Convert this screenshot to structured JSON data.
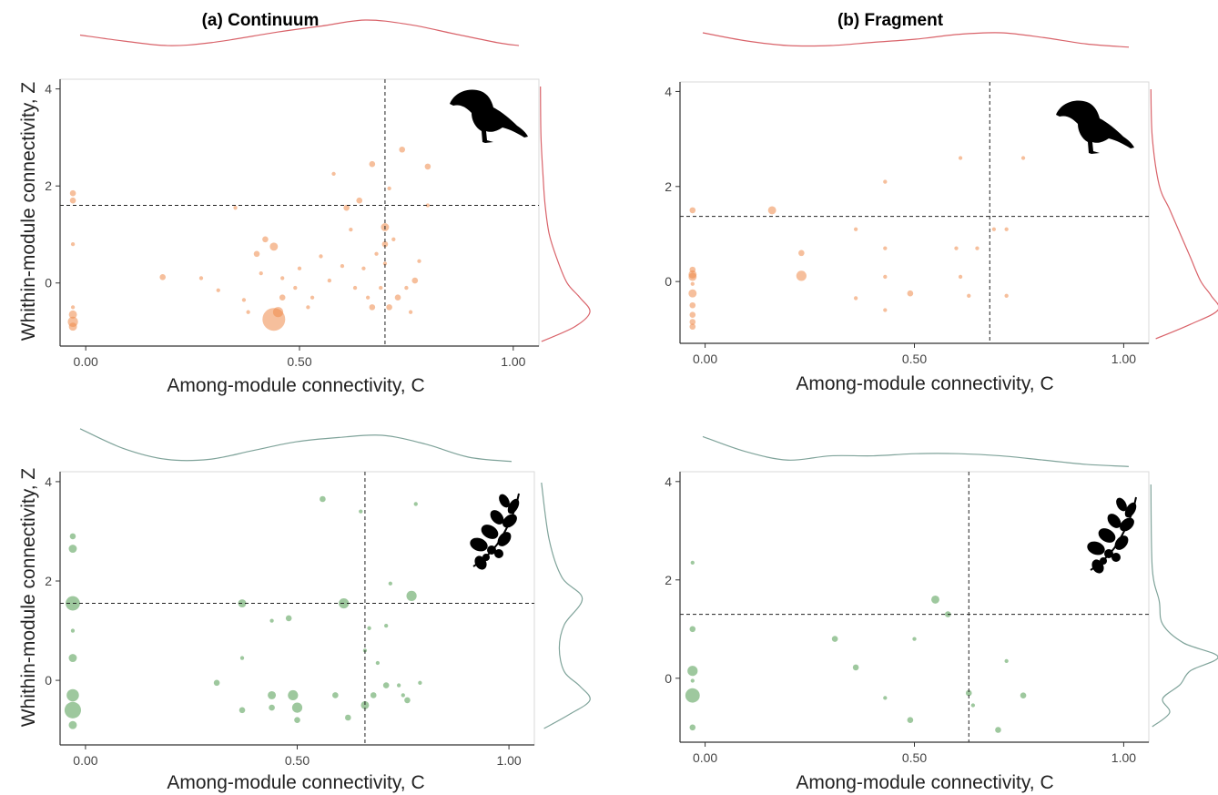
{
  "colors": {
    "birds_points": "#ee8a4a",
    "birds_density": "#d9636a",
    "plants_points": "#4f9a4f",
    "plants_density": "#7fa39a"
  },
  "axes": {
    "xlabel": "Among-module connectivity, C",
    "ylabel": "Whithin-module connectivity, Z",
    "xticks": [
      "0.00",
      "0.50",
      "1.00"
    ],
    "yticks": [
      "0",
      "2",
      "4"
    ]
  },
  "chart_data": [
    {
      "type": "scatter",
      "panel": "birds-continuum",
      "title": "(a)  Continuum",
      "icon": "bird-silhouette-icon",
      "xlim": [
        -0.06,
        1.06
      ],
      "ylim": [
        -1.3,
        4.2
      ],
      "xline": 0.7,
      "yline": 1.6,
      "x_density": [
        [
          0.0,
          0.5
        ],
        [
          0.1,
          0.3
        ],
        [
          0.2,
          0.15
        ],
        [
          0.3,
          0.25
        ],
        [
          0.45,
          0.6
        ],
        [
          0.55,
          0.8
        ],
        [
          0.65,
          1.0
        ],
        [
          0.75,
          0.85
        ],
        [
          0.85,
          0.55
        ],
        [
          0.95,
          0.25
        ],
        [
          1.0,
          0.15
        ]
      ],
      "y_density": [
        [
          -1.2,
          0.05
        ],
        [
          -0.9,
          0.7
        ],
        [
          -0.6,
          1.0
        ],
        [
          -0.3,
          0.8
        ],
        [
          0.0,
          0.55
        ],
        [
          0.5,
          0.35
        ],
        [
          1.0,
          0.2
        ],
        [
          1.6,
          0.12
        ],
        [
          2.2,
          0.08
        ],
        [
          3.0,
          0.04
        ],
        [
          4.0,
          0.03
        ]
      ],
      "points": [
        {
          "x": -0.03,
          "y": 1.85,
          "s": 2
        },
        {
          "x": -0.03,
          "y": 1.7,
          "s": 2
        },
        {
          "x": -0.03,
          "y": 0.8,
          "s": 1
        },
        {
          "x": -0.03,
          "y": -0.5,
          "s": 1
        },
        {
          "x": -0.03,
          "y": -0.65,
          "s": 3
        },
        {
          "x": -0.03,
          "y": -0.8,
          "s": 4
        },
        {
          "x": -0.03,
          "y": -0.9,
          "s": 3
        },
        {
          "x": 0.18,
          "y": 0.12,
          "s": 2
        },
        {
          "x": 0.27,
          "y": 0.1,
          "s": 1
        },
        {
          "x": 0.31,
          "y": -0.15,
          "s": 1
        },
        {
          "x": 0.35,
          "y": 1.55,
          "s": 1
        },
        {
          "x": 0.37,
          "y": -0.35,
          "s": 1
        },
        {
          "x": 0.38,
          "y": -0.6,
          "s": 1
        },
        {
          "x": 0.4,
          "y": 0.6,
          "s": 2
        },
        {
          "x": 0.41,
          "y": 0.2,
          "s": 1
        },
        {
          "x": 0.42,
          "y": 0.9,
          "s": 2
        },
        {
          "x": 0.44,
          "y": 0.75,
          "s": 3
        },
        {
          "x": 0.44,
          "y": -0.75,
          "s": 10
        },
        {
          "x": 0.45,
          "y": -0.6,
          "s": 4
        },
        {
          "x": 0.46,
          "y": 0.1,
          "s": 1
        },
        {
          "x": 0.46,
          "y": -0.3,
          "s": 2
        },
        {
          "x": 0.49,
          "y": -0.1,
          "s": 1
        },
        {
          "x": 0.5,
          "y": 0.3,
          "s": 1
        },
        {
          "x": 0.52,
          "y": -0.5,
          "s": 1
        },
        {
          "x": 0.53,
          "y": -0.3,
          "s": 1
        },
        {
          "x": 0.55,
          "y": 0.55,
          "s": 1
        },
        {
          "x": 0.57,
          "y": 0.05,
          "s": 1
        },
        {
          "x": 0.58,
          "y": 2.25,
          "s": 1
        },
        {
          "x": 0.6,
          "y": 0.35,
          "s": 1
        },
        {
          "x": 0.61,
          "y": 1.55,
          "s": 2
        },
        {
          "x": 0.62,
          "y": 1.1,
          "s": 1
        },
        {
          "x": 0.63,
          "y": -0.1,
          "s": 1
        },
        {
          "x": 0.64,
          "y": 1.7,
          "s": 2
        },
        {
          "x": 0.65,
          "y": 0.3,
          "s": 1
        },
        {
          "x": 0.66,
          "y": -0.3,
          "s": 1
        },
        {
          "x": 0.67,
          "y": -0.5,
          "s": 2
        },
        {
          "x": 0.67,
          "y": 2.45,
          "s": 2
        },
        {
          "x": 0.68,
          "y": 0.6,
          "s": 1
        },
        {
          "x": 0.69,
          "y": -0.1,
          "s": 1
        },
        {
          "x": 0.7,
          "y": 1.15,
          "s": 3
        },
        {
          "x": 0.7,
          "y": 0.8,
          "s": 2
        },
        {
          "x": 0.7,
          "y": 0.4,
          "s": 1
        },
        {
          "x": 0.71,
          "y": -0.5,
          "s": 2
        },
        {
          "x": 0.71,
          "y": 1.95,
          "s": 1
        },
        {
          "x": 0.72,
          "y": 0.9,
          "s": 1
        },
        {
          "x": 0.73,
          "y": -0.3,
          "s": 2
        },
        {
          "x": 0.74,
          "y": 2.75,
          "s": 2
        },
        {
          "x": 0.75,
          "y": -0.1,
          "s": 1
        },
        {
          "x": 0.76,
          "y": -0.6,
          "s": 1
        },
        {
          "x": 0.77,
          "y": 0.05,
          "s": 2
        },
        {
          "x": 0.78,
          "y": 0.45,
          "s": 1
        },
        {
          "x": 0.8,
          "y": 2.4,
          "s": 2
        },
        {
          "x": 0.8,
          "y": 1.6,
          "s": 1
        }
      ]
    },
    {
      "type": "scatter",
      "panel": "birds-fragment",
      "title": "(b)  Fragment",
      "icon": "bird-silhouette-icon",
      "xlim": [
        -0.06,
        1.06
      ],
      "ylim": [
        -1.3,
        4.2
      ],
      "xline": 0.68,
      "yline": 1.37,
      "x_density": [
        [
          0.0,
          0.6
        ],
        [
          0.1,
          0.35
        ],
        [
          0.2,
          0.2
        ],
        [
          0.3,
          0.2
        ],
        [
          0.4,
          0.3
        ],
        [
          0.5,
          0.4
        ],
        [
          0.6,
          0.55
        ],
        [
          0.7,
          0.6
        ],
        [
          0.8,
          0.45
        ],
        [
          0.9,
          0.25
        ],
        [
          1.0,
          0.15
        ]
      ],
      "y_density": [
        [
          -1.2,
          0.1
        ],
        [
          -0.9,
          0.6
        ],
        [
          -0.6,
          1.0
        ],
        [
          -0.3,
          0.9
        ],
        [
          0.0,
          0.75
        ],
        [
          0.5,
          0.6
        ],
        [
          1.0,
          0.45
        ],
        [
          1.5,
          0.3
        ],
        [
          2.0,
          0.15
        ],
        [
          3.0,
          0.05
        ],
        [
          4.0,
          0.03
        ]
      ],
      "points": [
        {
          "x": -0.03,
          "y": 1.5,
          "s": 2
        },
        {
          "x": -0.03,
          "y": 0.25,
          "s": 2
        },
        {
          "x": -0.03,
          "y": 0.15,
          "s": 3
        },
        {
          "x": -0.03,
          "y": 0.1,
          "s": 3
        },
        {
          "x": -0.03,
          "y": -0.05,
          "s": 1
        },
        {
          "x": -0.03,
          "y": -0.25,
          "s": 3
        },
        {
          "x": -0.03,
          "y": -0.5,
          "s": 2
        },
        {
          "x": -0.03,
          "y": -0.7,
          "s": 2
        },
        {
          "x": -0.03,
          "y": -0.85,
          "s": 2
        },
        {
          "x": -0.03,
          "y": -0.95,
          "s": 2
        },
        {
          "x": 0.16,
          "y": 1.5,
          "s": 3
        },
        {
          "x": 0.23,
          "y": 0.6,
          "s": 2
        },
        {
          "x": 0.23,
          "y": 0.12,
          "s": 4
        },
        {
          "x": 0.36,
          "y": 1.1,
          "s": 1
        },
        {
          "x": 0.36,
          "y": -0.35,
          "s": 1
        },
        {
          "x": 0.43,
          "y": 2.1,
          "s": 1
        },
        {
          "x": 0.43,
          "y": 0.7,
          "s": 1
        },
        {
          "x": 0.43,
          "y": -0.6,
          "s": 1
        },
        {
          "x": 0.43,
          "y": 0.1,
          "s": 1
        },
        {
          "x": 0.49,
          "y": -0.25,
          "s": 2
        },
        {
          "x": 0.6,
          "y": 0.7,
          "s": 1
        },
        {
          "x": 0.61,
          "y": 2.6,
          "s": 1
        },
        {
          "x": 0.61,
          "y": 0.1,
          "s": 1
        },
        {
          "x": 0.63,
          "y": -0.3,
          "s": 1
        },
        {
          "x": 0.65,
          "y": 0.7,
          "s": 1
        },
        {
          "x": 0.69,
          "y": 1.1,
          "s": 1
        },
        {
          "x": 0.72,
          "y": 1.1,
          "s": 1
        },
        {
          "x": 0.72,
          "y": -0.3,
          "s": 1
        },
        {
          "x": 0.76,
          "y": 2.6,
          "s": 1
        }
      ]
    },
    {
      "type": "scatter",
      "panel": "plants-continuum",
      "title": "",
      "icon": "plant-branch-icon",
      "xlim": [
        -0.06,
        1.06
      ],
      "ylim": [
        -1.3,
        4.2
      ],
      "xline": 0.66,
      "yline": 1.55,
      "x_density": [
        [
          0.0,
          0.9
        ],
        [
          0.1,
          0.45
        ],
        [
          0.2,
          0.2
        ],
        [
          0.3,
          0.2
        ],
        [
          0.4,
          0.4
        ],
        [
          0.5,
          0.6
        ],
        [
          0.6,
          0.7
        ],
        [
          0.7,
          0.75
        ],
        [
          0.8,
          0.55
        ],
        [
          0.9,
          0.25
        ],
        [
          1.0,
          0.15
        ]
      ],
      "y_density": [
        [
          -1.2,
          0.1
        ],
        [
          -0.9,
          0.6
        ],
        [
          -0.6,
          1.0
        ],
        [
          -0.3,
          0.8
        ],
        [
          0.0,
          0.5
        ],
        [
          0.5,
          0.4
        ],
        [
          1.0,
          0.5
        ],
        [
          1.55,
          0.85
        ],
        [
          2.0,
          0.45
        ],
        [
          2.8,
          0.2
        ],
        [
          4.0,
          0.05
        ]
      ],
      "points": [
        {
          "x": -0.03,
          "y": 2.9,
          "s": 2
        },
        {
          "x": -0.03,
          "y": 2.65,
          "s": 3
        },
        {
          "x": -0.03,
          "y": 1.55,
          "s": 6
        },
        {
          "x": -0.03,
          "y": 1.0,
          "s": 1
        },
        {
          "x": -0.03,
          "y": 0.45,
          "s": 3
        },
        {
          "x": -0.03,
          "y": -0.3,
          "s": 5
        },
        {
          "x": -0.03,
          "y": -0.6,
          "s": 7
        },
        {
          "x": -0.03,
          "y": -0.9,
          "s": 3
        },
        {
          "x": 0.31,
          "y": -0.05,
          "s": 2
        },
        {
          "x": 0.37,
          "y": 1.55,
          "s": 3
        },
        {
          "x": 0.37,
          "y": 0.45,
          "s": 1
        },
        {
          "x": 0.37,
          "y": -0.6,
          "s": 2
        },
        {
          "x": 0.44,
          "y": 1.2,
          "s": 1
        },
        {
          "x": 0.44,
          "y": -0.3,
          "s": 3
        },
        {
          "x": 0.44,
          "y": -0.55,
          "s": 2
        },
        {
          "x": 0.48,
          "y": 1.25,
          "s": 2
        },
        {
          "x": 0.49,
          "y": -0.3,
          "s": 4
        },
        {
          "x": 0.5,
          "y": -0.55,
          "s": 4
        },
        {
          "x": 0.5,
          "y": -0.8,
          "s": 2
        },
        {
          "x": 0.56,
          "y": 3.65,
          "s": 2
        },
        {
          "x": 0.59,
          "y": -0.3,
          "s": 2
        },
        {
          "x": 0.61,
          "y": 1.55,
          "s": 4
        },
        {
          "x": 0.62,
          "y": -0.75,
          "s": 2
        },
        {
          "x": 0.65,
          "y": 3.4,
          "s": 1
        },
        {
          "x": 0.66,
          "y": -0.5,
          "s": 3
        },
        {
          "x": 0.66,
          "y": 0.6,
          "s": 1
        },
        {
          "x": 0.67,
          "y": 1.05,
          "s": 1
        },
        {
          "x": 0.68,
          "y": -0.3,
          "s": 2
        },
        {
          "x": 0.69,
          "y": 0.35,
          "s": 1
        },
        {
          "x": 0.71,
          "y": 1.1,
          "s": 1
        },
        {
          "x": 0.72,
          "y": 1.95,
          "s": 1
        },
        {
          "x": 0.71,
          "y": -0.1,
          "s": 2
        },
        {
          "x": 0.74,
          "y": -0.1,
          "s": 1
        },
        {
          "x": 0.75,
          "y": -0.3,
          "s": 1
        },
        {
          "x": 0.76,
          "y": -0.4,
          "s": 2
        },
        {
          "x": 0.77,
          "y": 1.7,
          "s": 4
        },
        {
          "x": 0.78,
          "y": 3.55,
          "s": 1
        },
        {
          "x": 0.79,
          "y": -0.05,
          "s": 1
        }
      ]
    },
    {
      "type": "scatter",
      "panel": "plants-fragment",
      "title": "",
      "icon": "plant-branch-icon",
      "xlim": [
        -0.06,
        1.06
      ],
      "ylim": [
        -1.3,
        4.2
      ],
      "xline": 0.63,
      "yline": 1.3,
      "x_density": [
        [
          0.0,
          0.8
        ],
        [
          0.1,
          0.45
        ],
        [
          0.2,
          0.25
        ],
        [
          0.3,
          0.35
        ],
        [
          0.4,
          0.35
        ],
        [
          0.5,
          0.4
        ],
        [
          0.6,
          0.4
        ],
        [
          0.7,
          0.35
        ],
        [
          0.8,
          0.25
        ],
        [
          0.9,
          0.15
        ],
        [
          1.0,
          0.1
        ]
      ],
      "y_density": [
        [
          -1.2,
          0.05
        ],
        [
          -0.9,
          0.3
        ],
        [
          -0.6,
          0.2
        ],
        [
          -0.3,
          0.45
        ],
        [
          0.0,
          0.6
        ],
        [
          0.3,
          1.0
        ],
        [
          0.6,
          0.5
        ],
        [
          1.0,
          0.2
        ],
        [
          1.5,
          0.15
        ],
        [
          2.2,
          0.05
        ],
        [
          4.0,
          0.03
        ]
      ],
      "points": [
        {
          "x": -0.03,
          "y": 2.35,
          "s": 1
        },
        {
          "x": -0.03,
          "y": 1.0,
          "s": 2
        },
        {
          "x": -0.03,
          "y": 0.15,
          "s": 4
        },
        {
          "x": -0.03,
          "y": -0.05,
          "s": 1
        },
        {
          "x": -0.03,
          "y": -0.35,
          "s": 6
        },
        {
          "x": -0.03,
          "y": -1.0,
          "s": 2
        },
        {
          "x": 0.31,
          "y": 0.8,
          "s": 2
        },
        {
          "x": 0.36,
          "y": 0.22,
          "s": 2
        },
        {
          "x": 0.43,
          "y": -0.4,
          "s": 1
        },
        {
          "x": 0.49,
          "y": -0.85,
          "s": 2
        },
        {
          "x": 0.5,
          "y": 0.8,
          "s": 1
        },
        {
          "x": 0.55,
          "y": 1.6,
          "s": 3
        },
        {
          "x": 0.58,
          "y": 1.3,
          "s": 2
        },
        {
          "x": 0.63,
          "y": -0.3,
          "s": 2
        },
        {
          "x": 0.64,
          "y": -0.55,
          "s": 1
        },
        {
          "x": 0.7,
          "y": -1.05,
          "s": 2
        },
        {
          "x": 0.72,
          "y": 0.35,
          "s": 1
        },
        {
          "x": 0.76,
          "y": -0.35,
          "s": 2
        }
      ]
    }
  ]
}
